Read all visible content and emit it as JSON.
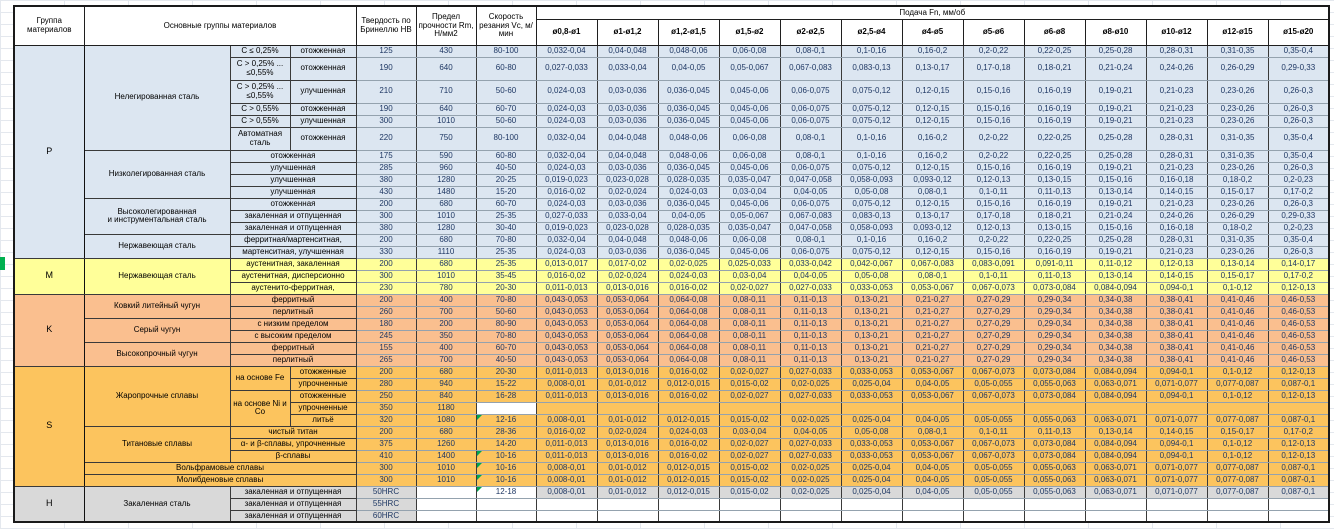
{
  "header": {
    "col_group": "Группа материалов",
    "col_main": "Основные группы материалов",
    "col_hb": "Твердость по Бринеллю HB",
    "col_rm": "Предел прочности Rm, Н/мм2",
    "col_vc": "Скорость резания Vc, м/мин",
    "feed_title": "Подача Fn, мм/об",
    "feed_cols": [
      "ø0,8-ø1",
      "ø1-ø1,2",
      "ø1,2-ø1,5",
      "ø1,5-ø2",
      "ø2-ø2,5",
      "ø2,5-ø4",
      "ø4-ø5",
      "ø5-ø6",
      "ø6-ø8",
      "ø8-ø10",
      "ø10-ø12",
      "ø12-ø15",
      "ø15-ø20"
    ]
  },
  "colors": {
    "P": "#dce6f1",
    "M": "#ffff99",
    "K": "#fabf8f",
    "S": "#fcc45e",
    "H": "#d9d9d9",
    "comment_marker": "#00a651",
    "selection_marker": "#00b050"
  },
  "feeds": {
    "A": [
      "0,032-0,04",
      "0,04-0,048",
      "0,048-0,06",
      "0,06-0,08",
      "0,08-0,1",
      "0,1-0,16",
      "0,16-0,2",
      "0,2-0,22",
      "0,22-0,25",
      "0,25-0,28",
      "0,28-0,31",
      "0,31-0,35",
      "0,35-0,4"
    ],
    "B": [
      "0,027-0,033",
      "0,033-0,04",
      "0,04-0,05",
      "0,05-0,067",
      "0,067-0,083",
      "0,083-0,13",
      "0,13-0,17",
      "0,17-0,18",
      "0,18-0,21",
      "0,21-0,24",
      "0,24-0,26",
      "0,26-0,29",
      "0,29-0,33"
    ],
    "C": [
      "0,024-0,03",
      "0,03-0,036",
      "0,036-0,045",
      "0,045-0,06",
      "0,06-0,075",
      "0,075-0,12",
      "0,12-0,15",
      "0,15-0,16",
      "0,16-0,19",
      "0,19-0,21",
      "0,21-0,23",
      "0,23-0,26",
      "0,26-0,3"
    ],
    "D": [
      "0,019-0,023",
      "0,023-0,028",
      "0,028-0,035",
      "0,035-0,047",
      "0,047-0,058",
      "0,058-0,093",
      "0,093-0,12",
      "0,12-0,13",
      "0,13-0,15",
      "0,15-0,16",
      "0,16-0,18",
      "0,18-0,2",
      "0,2-0,23"
    ],
    "E": [
      "0,016-0,02",
      "0,02-0,024",
      "0,024-0,03",
      "0,03-0,04",
      "0,04-0,05",
      "0,05-0,08",
      "0,08-0,1",
      "0,1-0,11",
      "0,11-0,13",
      "0,13-0,14",
      "0,14-0,15",
      "0,15-0,17",
      "0,17-0,2"
    ],
    "F": [
      "0,013-0,017",
      "0,017-0,02",
      "0,02-0,025",
      "0,025-0,033",
      "0,033-0,042",
      "0,042-0,067",
      "0,067-0,083",
      "0,083-0,091",
      "0,091-0,11",
      "0,11-0,12",
      "0,12-0,13",
      "0,13-0,14",
      "0,14-0,17"
    ],
    "G": [
      "0,011-0,013",
      "0,013-0,016",
      "0,016-0,02",
      "0,02-0,027",
      "0,027-0,033",
      "0,033-0,053",
      "0,053-0,067",
      "0,067-0,073",
      "0,073-0,084",
      "0,084-0,094",
      "0,094-0,1",
      "0,1-0,12",
      "0,12-0,13"
    ],
    "H": [
      "0,043-0,053",
      "0,053-0,064",
      "0,064-0,08",
      "0,08-0,11",
      "0,11-0,13",
      "0,13-0,21",
      "0,21-0,27",
      "0,27-0,29",
      "0,29-0,34",
      "0,34-0,38",
      "0,38-0,41",
      "0,41-0,46",
      "0,46-0,53"
    ],
    "I": [
      "0,008-0,01",
      "0,01-0,012",
      "0,012-0,015",
      "0,015-0,02",
      "0,02-0,025",
      "0,025-0,04",
      "0,04-0,05",
      "0,05-0,055",
      "0,055-0,063",
      "0,063-0,071",
      "0,071-0,077",
      "0,077-0,087",
      "0,087-0,1"
    ],
    "EMPTY": [
      "",
      "",
      "",
      "",
      "",
      "",
      "",
      "",
      "",
      "",
      "",
      "",
      ""
    ]
  },
  "rows": [
    {
      "g": {
        "label": "P",
        "span": 15
      },
      "main": {
        "label": "Нелегированная сталь",
        "span": 6
      },
      "sub1": {
        "label": "C ≤ 0,25%"
      },
      "sub2": "отожженная",
      "hb": "125",
      "rm": "430",
      "vc": "80-100",
      "feed": "A",
      "thick": true
    },
    {
      "sub1": {
        "label": "C > 0,25% ...\n≤0,55%"
      },
      "sub2": "отожженная",
      "hb": "190",
      "rm": "640",
      "vc": "60-80",
      "feed": "B",
      "tall": true
    },
    {
      "sub1": {
        "label": "C > 0,25% ...\n≤0,55%"
      },
      "sub2": "улучшенная",
      "hb": "210",
      "rm": "710",
      "vc": "50-60",
      "feed": "C",
      "tall": true
    },
    {
      "sub1": {
        "label": "C > 0,55%"
      },
      "sub2": "отожженная",
      "hb": "190",
      "rm": "640",
      "vc": "60-70",
      "feed": "C"
    },
    {
      "sub1": {
        "label": "C > 0,55%"
      },
      "sub2": "улучшенная",
      "hb": "300",
      "rm": "1010",
      "vc": "50-60",
      "feed": "C"
    },
    {
      "sub1": {
        "label": "Автоматная\nсталь"
      },
      "sub2": "отожженная",
      "hb": "220",
      "rm": "750",
      "vc": "80-100",
      "feed": "A",
      "tall": true
    },
    {
      "main": {
        "label": "Низколегированная сталь",
        "span": 4
      },
      "wide": "отожженная",
      "hb": "175",
      "rm": "590",
      "vc": "60-80",
      "feed": "A",
      "thick": true
    },
    {
      "wide": "улучшенная",
      "hb": "285",
      "rm": "960",
      "vc": "40-50",
      "feed": "C"
    },
    {
      "wide": "улучшенная",
      "hb": "380",
      "rm": "1280",
      "vc": "20-25",
      "feed": "D"
    },
    {
      "wide": "улучшенная",
      "hb": "430",
      "rm": "1480",
      "vc": "15-20",
      "feed": "E"
    },
    {
      "main": {
        "label": "Высоколегированная\nи инструментальная сталь",
        "span": 3
      },
      "wide": "отожженная",
      "hb": "200",
      "rm": "680",
      "vc": "60-70",
      "feed": "C",
      "thick": true
    },
    {
      "wide": "закаленная и отпущенная",
      "hb": "300",
      "rm": "1010",
      "vc": "25-35",
      "feed": "B"
    },
    {
      "wide": "закаленная и отпущенная",
      "hb": "380",
      "rm": "1280",
      "vc": "30-40",
      "feed": "D"
    },
    {
      "main": {
        "label": "Нержавеющая сталь",
        "span": 2
      },
      "wide": "ферритная/мартенситная,",
      "hb": "200",
      "rm": "680",
      "vc": "70-80",
      "feed": "A",
      "thick": true
    },
    {
      "wide": "мартенситная, улучшенная",
      "hb": "330",
      "rm": "1110",
      "vc": "25-35",
      "feed": "C"
    },
    {
      "g": {
        "label": "M",
        "span": 3
      },
      "main": {
        "label": "Нержавеющая сталь",
        "span": 3
      },
      "wide": "аустенитная, закаленная",
      "hb": "200",
      "rm": "680",
      "vc": "25-35",
      "feed": "F",
      "thick": true
    },
    {
      "wide": "аустенитная, дисперсионно",
      "hb": "300",
      "rm": "1010",
      "vc": "35-45",
      "feed": "E"
    },
    {
      "wide": "аустенито-ферритная,",
      "hb": "230",
      "rm": "780",
      "vc": "20-30",
      "feed": "G"
    },
    {
      "g": {
        "label": "K",
        "span": 6
      },
      "main": {
        "label": "Ковкий литейный чугун",
        "span": 2
      },
      "wide": "ферритный",
      "hb": "200",
      "rm": "400",
      "vc": "70-80",
      "feed": "H",
      "thick": true
    },
    {
      "wide": "перлитный",
      "hb": "260",
      "rm": "700",
      "vc": "50-60",
      "feed": "H"
    },
    {
      "main": {
        "label": "Серый чугун",
        "span": 2
      },
      "wide": "с низким пределом",
      "hb": "180",
      "rm": "200",
      "vc": "80-90",
      "feed": "H",
      "thick": true
    },
    {
      "wide": "с высоким пределом",
      "hb": "245",
      "rm": "350",
      "vc": "70-80",
      "feed": "H"
    },
    {
      "main": {
        "label": "Высокопрочный чугун",
        "span": 2
      },
      "wide": "ферритный",
      "hb": "155",
      "rm": "400",
      "vc": "60-70",
      "feed": "H",
      "thick": true
    },
    {
      "wide": "перлитный",
      "hb": "265",
      "rm": "700",
      "vc": "40-50",
      "feed": "H"
    },
    {
      "g": {
        "label": "S",
        "span": 10
      },
      "main": {
        "label": "Жаропрочные сплавы",
        "span": 5
      },
      "sub1": {
        "label": "на основе Fe",
        "span": 2
      },
      "sub2": "отожженные",
      "hb": "200",
      "rm": "680",
      "vc": "20-30",
      "feed": "G",
      "thick": true
    },
    {
      "sub2": "упрочненные",
      "hb": "280",
      "rm": "940",
      "vc": "15-22",
      "feed": "I"
    },
    {
      "sub1": {
        "label": "на основе Ni и\nCo",
        "span": 3
      },
      "sub2": "отожженные",
      "hb": "250",
      "rm": "840",
      "vc": "16-28",
      "feed": "G"
    },
    {
      "sub2": "упрочненные",
      "hb": "350",
      "rm": "1180",
      "vc": "",
      "feed": "EMPTY",
      "white": [
        "vc"
      ]
    },
    {
      "sub2": "литьё",
      "hb": "320",
      "rm": "1080",
      "vc": "12-16",
      "feed": "I",
      "note": true
    },
    {
      "main": {
        "label": "Титановые сплавы",
        "span": 3
      },
      "wide": "чистый титан",
      "hb": "200",
      "rm": "680",
      "vc": "28-36",
      "feed": "E",
      "thick": true
    },
    {
      "wide": "α- и β-сплавы, упрочненные",
      "hb": "375",
      "rm": "1260",
      "vc": "14-20",
      "feed": "G"
    },
    {
      "wide": "β-сплавы",
      "hb": "410",
      "rm": "1400",
      "vc": "10-16",
      "feed": "G",
      "note": true
    },
    {
      "full": "Вольфрамовые сплавы",
      "hb": "300",
      "rm": "1010",
      "vc": "10-16",
      "feed": "I",
      "note": true,
      "thick": true
    },
    {
      "full": "Молибденовые сплавы",
      "hb": "300",
      "rm": "1010",
      "vc": "10-16",
      "feed": "I",
      "note": true,
      "thick": true
    },
    {
      "g": {
        "label": "H",
        "span": 3
      },
      "main": {
        "label": "Закаленная сталь",
        "span": 3
      },
      "wide": "закаленная и отпущенная",
      "hb": "50HRC",
      "rm": "",
      "vc": "12-18",
      "feed": "I",
      "white": [
        "rm",
        "vc"
      ],
      "note": true,
      "thick": true
    },
    {
      "wide": "закаленная и отпущенная",
      "hb": "55HRC",
      "rm": "",
      "vc": "",
      "feed": "EMPTY",
      "white": [
        "rm",
        "vc",
        "feed"
      ]
    },
    {
      "wide": "закаленная и отпущенная",
      "hb": "60HRC",
      "rm": "",
      "vc": "",
      "feed": "EMPTY",
      "white": [
        "rm",
        "vc",
        "feed"
      ]
    }
  ]
}
